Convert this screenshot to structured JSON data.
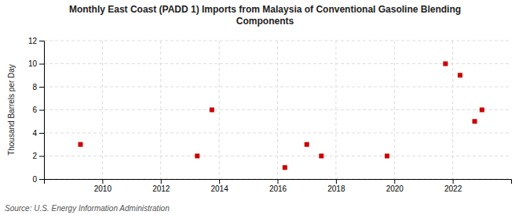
{
  "chart_data": {
    "type": "scatter",
    "title": "Monthly East Coast (PADD 1) Imports from Malaysia of Conventional Gasoline Blending\nComponents",
    "y_label": "Thousand Barrels per Day",
    "annotation": "Source: U.S. Energy Information Administration",
    "x": [
      2009.25,
      2013.25,
      2013.75,
      2016.25,
      2017.0,
      2017.5,
      2019.75,
      2021.75,
      2022.25,
      2022.75,
      2023.0
    ],
    "values": [
      3,
      2,
      6,
      1,
      3,
      2,
      2,
      10,
      9,
      5,
      6
    ],
    "color": "#cc0000",
    "marker": "square",
    "xlim": [
      2008,
      2024
    ],
    "ylim": [
      0,
      12
    ],
    "xticks": [
      2010,
      2012,
      2014,
      2016,
      2018,
      2020,
      2022
    ],
    "yticks": [
      0,
      2,
      4,
      6,
      8,
      10,
      12
    ],
    "grid": true
  }
}
